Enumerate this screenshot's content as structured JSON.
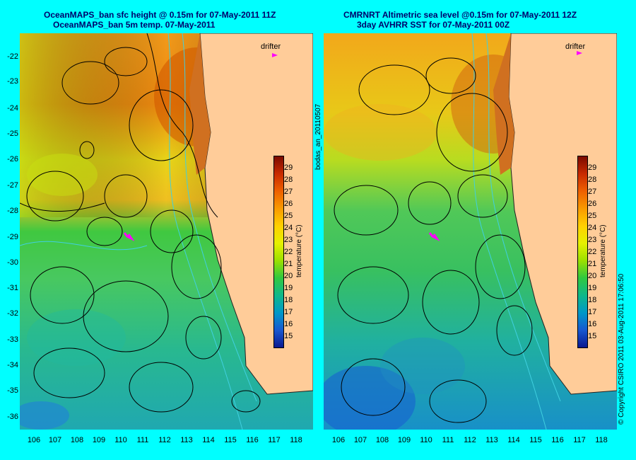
{
  "left_panel": {
    "title_line1": "OceanMAPS_ban sfc height @ 0.15m for 07-May-2011 11Z",
    "title_line2": "OceanMAPS_ban 5m temp. 07-May-2011"
  },
  "right_panel": {
    "title_line1": "CMRNRT Altimetric sea level  @0.15m  for 07-May-2011 12Z",
    "title_line2": "3day AVHRR SST for 07-May-2011 00Z"
  },
  "latitudes": [
    "-22",
    "-23",
    "-24",
    "-25",
    "-26",
    "-27",
    "-28",
    "-29",
    "-30",
    "-31",
    "-32",
    "-33",
    "-34",
    "-35",
    "-36"
  ],
  "longitudes": [
    "106",
    "107",
    "108",
    "109",
    "110",
    "111",
    "112",
    "113",
    "114",
    "115",
    "116",
    "117",
    "118"
  ],
  "colorbar": {
    "ticks": [
      "29",
      "28",
      "27",
      "26",
      "25",
      "24",
      "23",
      "22",
      "21",
      "20",
      "19",
      "18",
      "17",
      "16",
      "15"
    ],
    "unit": "temperature (°C)"
  },
  "drifter_label": "drifter",
  "side_label_left": "bodas_an_20110507",
  "side_label_right": "© Copyright CSIRO 2011   03-Aug-2011 17:06:50",
  "colors": {
    "background": "#00ffff",
    "land": "#ffcc99",
    "drifter": "#ff00ff",
    "isobath": "#40d0e0"
  }
}
